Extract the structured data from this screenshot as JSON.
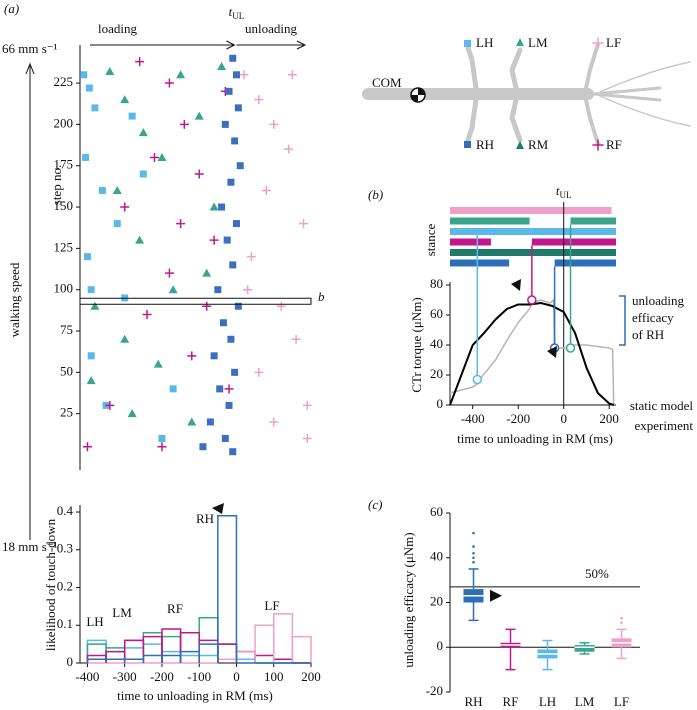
{
  "panels": [
    "(a)",
    "(b)",
    "(c)"
  ],
  "diagram": {
    "labels": [
      "LH",
      "LM",
      "LF",
      "COM",
      "RH",
      "RM",
      "RF"
    ]
  },
  "chart_data": [
    {
      "type": "scatter",
      "ylabel": "step no.",
      "xlim": [
        -420,
        200
      ],
      "ylim": [
        0,
        245
      ],
      "yticks": [
        25,
        50,
        75,
        100,
        125,
        150,
        175,
        200,
        225
      ],
      "vline_label": {
        "main": "t",
        "sub": "UL"
      },
      "annotations": {
        "loading": "loading",
        "unloading": "unloading",
        "speed": "walking speed",
        "fast": "66 mm s⁻¹",
        "slow": "18 mm s⁻¹",
        "highlight": "b"
      },
      "highlight_step": 93,
      "series": [
        {
          "name": "LH",
          "color": "#5bb8e8",
          "marker": "square",
          "x": [
            -410,
            -395,
            -380,
            -405,
            -360,
            -320,
            -400,
            -390,
            -300,
            -250,
            -170,
            -350,
            -200,
            -280,
            -390
          ],
          "y": [
            230,
            222,
            210,
            180,
            160,
            140,
            120,
            60,
            95,
            170,
            40,
            30,
            10,
            205,
            100
          ]
        },
        {
          "name": "LM",
          "color": "#3aa58a",
          "marker": "triangle",
          "x": [
            -340,
            -300,
            -250,
            -200,
            -150,
            -320,
            -380,
            -260,
            -100,
            -60,
            -170,
            -300,
            -390,
            -210,
            -120,
            -80,
            -40,
            -280
          ],
          "y": [
            232,
            215,
            195,
            180,
            230,
            160,
            90,
            130,
            205,
            150,
            100,
            70,
            45,
            55,
            20,
            110,
            235,
            25
          ]
        },
        {
          "name": "RF",
          "color": "#c0188c",
          "marker": "plus",
          "x": [
            -260,
            -180,
            -140,
            -220,
            -100,
            -300,
            -60,
            -180,
            -240,
            -120,
            -340,
            -20,
            -200,
            -400,
            -80,
            -150,
            -30
          ],
          "y": [
            238,
            225,
            200,
            180,
            170,
            150,
            130,
            110,
            85,
            60,
            30,
            40,
            5,
            5,
            90,
            140,
            220
          ]
        },
        {
          "name": "LF",
          "color": "#f0a0c8",
          "marker": "plus",
          "x": [
            20,
            60,
            100,
            140,
            80,
            180,
            40,
            120,
            160,
            60,
            190,
            100,
            30,
            150,
            190
          ],
          "y": [
            230,
            215,
            200,
            185,
            160,
            140,
            120,
            90,
            70,
            50,
            30,
            20,
            100,
            230,
            10
          ]
        },
        {
          "name": "RH",
          "color": "#3c6fc0",
          "marker": "square",
          "x": [
            -10,
            0,
            -20,
            5,
            -30,
            -5,
            10,
            -15,
            -40,
            0,
            -25,
            -10,
            -50,
            5,
            -35,
            -15,
            -60,
            -5,
            -45,
            -20,
            -70,
            -30,
            -90,
            -10
          ],
          "y": [
            240,
            230,
            220,
            210,
            200,
            190,
            175,
            165,
            150,
            140,
            130,
            115,
            100,
            90,
            80,
            70,
            60,
            50,
            40,
            30,
            20,
            10,
            5,
            2
          ]
        }
      ]
    },
    {
      "type": "histogram",
      "ylabel": "likelihood of touch-down",
      "xlabel": "time to unloading in RM (ms)",
      "xlim": [
        -420,
        200
      ],
      "ylim": [
        0,
        0.4
      ],
      "xticks": [
        -400,
        -300,
        -200,
        -100,
        0,
        100,
        200
      ],
      "yticks": [
        0,
        0.1,
        0.2,
        0.3,
        0.4
      ],
      "bins": [
        -400,
        -350,
        -300,
        -250,
        -200,
        -150,
        -100,
        -50,
        0,
        50,
        100,
        150,
        200
      ],
      "series": [
        {
          "name": "LH",
          "color": "#5bb8e8",
          "values": [
            0.06,
            0.03,
            0.04,
            0.05,
            0.03,
            0.02,
            0.02,
            0.05,
            0.01,
            0,
            0,
            0
          ]
        },
        {
          "name": "LM",
          "color": "#3aa58a",
          "values": [
            0.05,
            0.04,
            0.06,
            0.08,
            0.07,
            0.08,
            0.12,
            0.05,
            0.03,
            0,
            0,
            0
          ]
        },
        {
          "name": "RF",
          "color": "#c0188c",
          "values": [
            0.02,
            0.03,
            0.06,
            0.07,
            0.09,
            0.08,
            0.06,
            0.05,
            0.03,
            0.02,
            0.01,
            0
          ]
        },
        {
          "name": "LF",
          "color": "#f0a0c8",
          "values": [
            0,
            0,
            0,
            0,
            0,
            0,
            0,
            0.01,
            0.03,
            0.1,
            0.13,
            0.07
          ]
        },
        {
          "name": "RH",
          "color": "#2d6fb8",
          "values": [
            0.01,
            0.01,
            0.01,
            0.02,
            0.02,
            0.03,
            0.05,
            0.39,
            0,
            0,
            0,
            0
          ]
        }
      ]
    },
    {
      "type": "line",
      "ylabel": "CTr torque (μNm)",
      "xlabel": "time to unloading in RM (ms)",
      "xlim": [
        -500,
        230
      ],
      "ylim": [
        0,
        80
      ],
      "xticks": [
        -400,
        -200,
        0,
        200
      ],
      "yticks": [
        0,
        20,
        40,
        60,
        80
      ],
      "vline_label": {
        "main": "t",
        "sub": "UL"
      },
      "annotation": [
        "unloading",
        "efficacy",
        "of RH"
      ],
      "stance": {
        "label": "stance",
        "rows": [
          {
            "color": "#f0a0c8",
            "intervals": [
              [
                -500,
                210
              ]
            ]
          },
          {
            "color": "#3aa58a",
            "intervals": [
              [
                -500,
                -150
              ],
              [
                30,
                230
              ]
            ]
          },
          {
            "color": "#5bb8e8",
            "intervals": [
              [
                -500,
                230
              ]
            ]
          },
          {
            "color": "#c0188c",
            "intervals": [
              [
                -500,
                -320
              ],
              [
                -140,
                230
              ]
            ]
          },
          {
            "color": "#1f7a6a",
            "intervals": [
              [
                -500,
                230
              ]
            ]
          },
          {
            "color": "#2d6fb8",
            "intervals": [
              [
                -500,
                -240
              ],
              [
                -40,
                230
              ]
            ]
          }
        ]
      },
      "series": [
        {
          "name": "static model",
          "color": "#b5b5b5",
          "x": [
            -500,
            -400,
            -380,
            -370,
            -300,
            -250,
            -200,
            -150,
            -140,
            -100,
            -60,
            -45,
            -40,
            30,
            35,
            100,
            200,
            215,
            220
          ],
          "values": [
            8,
            12,
            14,
            17,
            30,
            43,
            55,
            64,
            68,
            70,
            68,
            70,
            38,
            38,
            40,
            40,
            38,
            37,
            0
          ]
        },
        {
          "name": "experiment",
          "color": "#000000",
          "x": [
            -500,
            -450,
            -400,
            -350,
            -300,
            -250,
            -200,
            -150,
            -100,
            -50,
            0,
            50,
            100,
            150,
            200,
            220
          ],
          "values": [
            0,
            20,
            40,
            48,
            57,
            64,
            67,
            67,
            68,
            66,
            62,
            48,
            25,
            8,
            1,
            0
          ]
        }
      ],
      "touchdowns": [
        {
          "x": -380,
          "y": 17,
          "color": "#5bb8e8"
        },
        {
          "x": -140,
          "y": 70,
          "color": "#c0188c"
        },
        {
          "x": -40,
          "y": 38,
          "color": "#2d6fb8"
        },
        {
          "x": 30,
          "y": 38,
          "color": "#3aa58a"
        }
      ]
    },
    {
      "type": "box",
      "ylabel": "unloading efficacy (μNm)",
      "ylim": [
        -20,
        60
      ],
      "yticks": [
        -20,
        0,
        20,
        40,
        60
      ],
      "reference": {
        "value": 27,
        "label": "50%"
      },
      "categories": [
        "RH",
        "RF",
        "LH",
        "LM",
        "LF"
      ],
      "colors": [
        "#2d6fb8",
        "#c0188c",
        "#5bb8e8",
        "#3aa58a",
        "#f0a0c8"
      ],
      "boxes": [
        {
          "q1": 20,
          "median": 23,
          "q3": 26,
          "whisker_low": 12,
          "whisker_high": 35,
          "outliers": [
            38,
            40,
            42,
            45,
            51
          ]
        },
        {
          "q1": 0,
          "median": 1,
          "q3": 2,
          "whisker_low": -10,
          "whisker_high": 8,
          "outliers": []
        },
        {
          "q1": -5,
          "median": -3,
          "q3": -1,
          "whisker_low": -10,
          "whisker_high": 3,
          "outliers": []
        },
        {
          "q1": -2,
          "median": 0,
          "q3": 1,
          "whisker_low": -3,
          "whisker_high": 2,
          "outliers": []
        },
        {
          "q1": 0,
          "median": 2,
          "q3": 4,
          "whisker_low": -5,
          "whisker_high": 8,
          "outliers": [
            11,
            13
          ]
        }
      ]
    }
  ]
}
